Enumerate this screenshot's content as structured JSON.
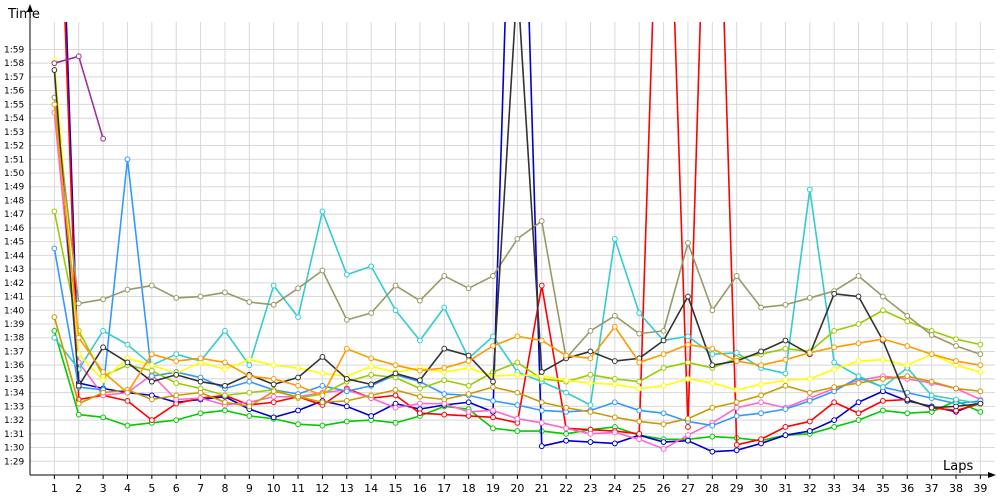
{
  "chart_data": {
    "type": "line",
    "ylabel": "Time",
    "xlabel": "Laps",
    "x": [
      1,
      2,
      3,
      4,
      5,
      6,
      7,
      8,
      9,
      10,
      11,
      12,
      13,
      14,
      15,
      16,
      17,
      18,
      19,
      20,
      21,
      22,
      23,
      24,
      25,
      26,
      27,
      28,
      29,
      30,
      31,
      32,
      33,
      34,
      35,
      36,
      37,
      38,
      39
    ],
    "xlim": [
      0,
      39.6
    ],
    "ylim": [
      88.0,
      121.0
    ],
    "y_ticks": [
      89,
      90,
      91,
      92,
      93,
      94,
      95,
      96,
      97,
      98,
      99,
      100,
      101,
      102,
      103,
      104,
      105,
      106,
      107,
      108,
      109,
      110,
      111,
      112,
      113,
      114,
      115,
      116,
      117,
      118,
      119
    ],
    "y_tick_labels": [
      "1:29",
      "1:30",
      "1:31",
      "1:32",
      "1:33",
      "1:34",
      "1:35",
      "1:36",
      "1:37",
      "1:38",
      "1:39",
      "1:40",
      "1:41",
      "1:42",
      "1:43",
      "1:44",
      "1:45",
      "1:46",
      "1:47",
      "1:48",
      "1:49",
      "1:50",
      "1:51",
      "1:52",
      "1:53",
      "1:54",
      "1:55",
      "1:56",
      "1:57",
      "1:58",
      "1:59"
    ],
    "grid": true,
    "series": [
      {
        "color": "#00cc00",
        "values": [
          98.5,
          92.4,
          92.2,
          91.6,
          91.8,
          92.0,
          92.5,
          92.7,
          92.3,
          92.1,
          91.7,
          91.6,
          91.9,
          92.0,
          91.8,
          92.3,
          93.0,
          92.8,
          91.4,
          91.2,
          91.2,
          91.0,
          91.3,
          91.5,
          90.9,
          90.6,
          90.6,
          90.8,
          90.7,
          90.5,
          90.9,
          91.0,
          91.5,
          92.0,
          92.7,
          92.5,
          92.6,
          93.4,
          92.6
        ]
      },
      {
        "color": "#0000cc",
        "values": [
          146.5,
          94.7,
          94.3,
          94.0,
          93.8,
          93.3,
          93.5,
          93.7,
          92.8,
          92.2,
          92.7,
          93.4,
          93.0,
          92.3,
          93.2,
          92.8,
          93.1,
          93.3,
          92.6,
          150.0,
          90.1,
          90.5,
          90.4,
          90.3,
          90.9,
          90.4,
          90.5,
          89.7,
          89.8,
          90.3,
          90.9,
          91.2,
          92.0,
          93.3,
          94.1,
          93.4,
          93.0,
          92.6,
          93.3
        ]
      },
      {
        "color": "#ff0000",
        "values": [
          142.5,
          93.5,
          93.8,
          93.4,
          92.0,
          93.2,
          93.6,
          93.8,
          93.1,
          93.3,
          93.7,
          93.1,
          94.3,
          93.6,
          93.8,
          92.5,
          92.4,
          92.3,
          92.2,
          91.8,
          101.8,
          91.4,
          91.3,
          91.2,
          91.0,
          145.8,
          91.5,
          150.0,
          90.2,
          90.6,
          91.5,
          91.9,
          93.3,
          92.5,
          93.4,
          93.5,
          92.9,
          92.7,
          93.2
        ]
      },
      {
        "color": "#ff66cc",
        "values": [
          114.4,
          96.2,
          93.8,
          94.0,
          95.3,
          93.5,
          93.6,
          93.1,
          93.3,
          93.7,
          93.7,
          94.0,
          94.2,
          93.6,
          92.9,
          93.2,
          93.2,
          92.6,
          92.7,
          92.1,
          91.8,
          91.4,
          91.0,
          91.1,
          90.6,
          89.9,
          90.9,
          91.8,
          92.9,
          93.3,
          92.9,
          93.6,
          94.3,
          94.9,
          95.2,
          95.0,
          94.7,
          94.3,
          93.5
        ]
      },
      {
        "color": "#3399ff",
        "values": [
          104.5,
          94.4,
          94.2,
          111.0,
          95.2,
          95.5,
          95.1,
          94.3,
          94.8,
          94.2,
          93.9,
          94.5,
          94.1,
          94.5,
          95.3,
          94.8,
          93.9,
          93.8,
          93.4,
          93.1,
          92.7,
          92.6,
          92.7,
          93.3,
          92.7,
          92.5,
          91.9,
          91.6,
          92.3,
          92.5,
          92.8,
          93.4,
          94.1,
          95.1,
          94.4,
          94.0,
          93.6,
          93.2,
          93.4
        ]
      },
      {
        "color": "#33cccc",
        "values": [
          98.0,
          95.7,
          98.5,
          97.5,
          96.0,
          96.8,
          96.3,
          98.5,
          96.0,
          101.8,
          99.5,
          107.2,
          102.6,
          103.2,
          100.0,
          97.8,
          100.2,
          96.5,
          98.1,
          95.5,
          94.8,
          94.0,
          93.1,
          105.2,
          99.8,
          97.8,
          98.1,
          96.8,
          96.9,
          95.8,
          95.4,
          108.8,
          96.2,
          95.2,
          94.4,
          95.8,
          93.8,
          93.5,
          93.2
        ]
      },
      {
        "color": "#99cc00",
        "values": [
          107.2,
          98.5,
          95.2,
          96.0,
          95.6,
          94.7,
          94.3,
          93.8,
          94.0,
          94.2,
          93.6,
          93.9,
          94.8,
          95.3,
          95.1,
          94.3,
          94.9,
          94.5,
          95.5,
          96.2,
          95.0,
          94.8,
          95.3,
          95.0,
          94.8,
          95.8,
          96.2,
          95.8,
          96.5,
          96.8,
          97.2,
          97.0,
          98.5,
          99.0,
          100.0,
          99.2,
          98.5,
          97.9,
          97.5
        ]
      },
      {
        "color": "#ffff00",
        "values": [
          118.2,
          96.8,
          94.9,
          96.5,
          96.0,
          95.4,
          96.2,
          95.7,
          96.4,
          96.0,
          95.8,
          95.4,
          95.2,
          95.9,
          95.5,
          95.8,
          95.5,
          95.8,
          95.2,
          95.3,
          95.2,
          94.9,
          94.7,
          94.6,
          94.3,
          94.5,
          95.0,
          94.7,
          94.2,
          94.6,
          94.9,
          95.0,
          95.7,
          96.3,
          96.4,
          96.0,
          96.8,
          96.0,
          95.5
        ]
      },
      {
        "color": "#cc9900",
        "values": [
          99.5,
          93.2,
          94.0,
          94.2,
          93.5,
          93.8,
          94.0,
          93.3,
          93.0,
          94.1,
          93.7,
          93.3,
          93.4,
          93.8,
          94.2,
          93.7,
          93.5,
          93.9,
          94.4,
          94.0,
          93.3,
          92.9,
          92.6,
          92.2,
          91.9,
          91.7,
          92.1,
          92.9,
          93.3,
          93.8,
          94.5,
          94.0,
          94.4,
          94.7,
          95.0,
          95.2,
          94.8,
          94.3,
          94.1
        ]
      },
      {
        "color": "#999966",
        "values": [
          115.5,
          100.5,
          100.8,
          101.5,
          101.8,
          100.9,
          101.0,
          101.3,
          100.6,
          100.4,
          101.6,
          102.9,
          99.3,
          99.8,
          101.8,
          100.7,
          102.5,
          101.6,
          102.5,
          105.2,
          106.5,
          96.5,
          98.5,
          99.6,
          98.3,
          98.5,
          104.9,
          100.0,
          102.5,
          100.2,
          100.4,
          100.9,
          101.4,
          102.5,
          101.0,
          99.6,
          98.2,
          97.4,
          96.8
        ]
      },
      {
        "color": "#333333",
        "values": [
          117.5,
          94.5,
          97.3,
          96.2,
          94.8,
          95.3,
          94.8,
          94.5,
          95.3,
          94.6,
          95.1,
          96.6,
          95.0,
          94.6,
          95.4,
          94.9,
          97.2,
          96.7,
          94.8,
          124.0,
          95.5,
          96.5,
          97.0,
          96.3,
          96.5,
          97.8,
          101.0,
          96.0,
          96.3,
          97.0,
          97.8,
          96.8,
          101.2,
          101.0,
          97.8,
          93.5,
          92.9,
          93.0,
          93.2
        ]
      },
      {
        "color": "#993399",
        "values": [
          118.0,
          118.5,
          112.5,
          null,
          null,
          null,
          null,
          null,
          null,
          null,
          null,
          null,
          null,
          null,
          null,
          null,
          null,
          null,
          null,
          null,
          null,
          null,
          null,
          null,
          null,
          null,
          null,
          null,
          null,
          null,
          null,
          null,
          null,
          null,
          null,
          null,
          null,
          null,
          null
        ]
      },
      {
        "color": "#ff9900",
        "values": [
          115.0,
          98.0,
          95.5,
          94.0,
          96.8,
          96.3,
          96.5,
          96.2,
          95.2,
          95.0,
          94.5,
          93.8,
          97.2,
          96.5,
          96.0,
          95.6,
          95.8,
          96.3,
          97.4,
          98.1,
          97.8,
          96.7,
          96.5,
          98.8,
          96.2,
          96.8,
          97.5,
          97.2,
          96.3,
          96.0,
          96.4,
          96.9,
          97.3,
          97.6,
          97.9,
          97.4,
          96.8,
          96.3,
          96.0
        ]
      }
    ]
  }
}
